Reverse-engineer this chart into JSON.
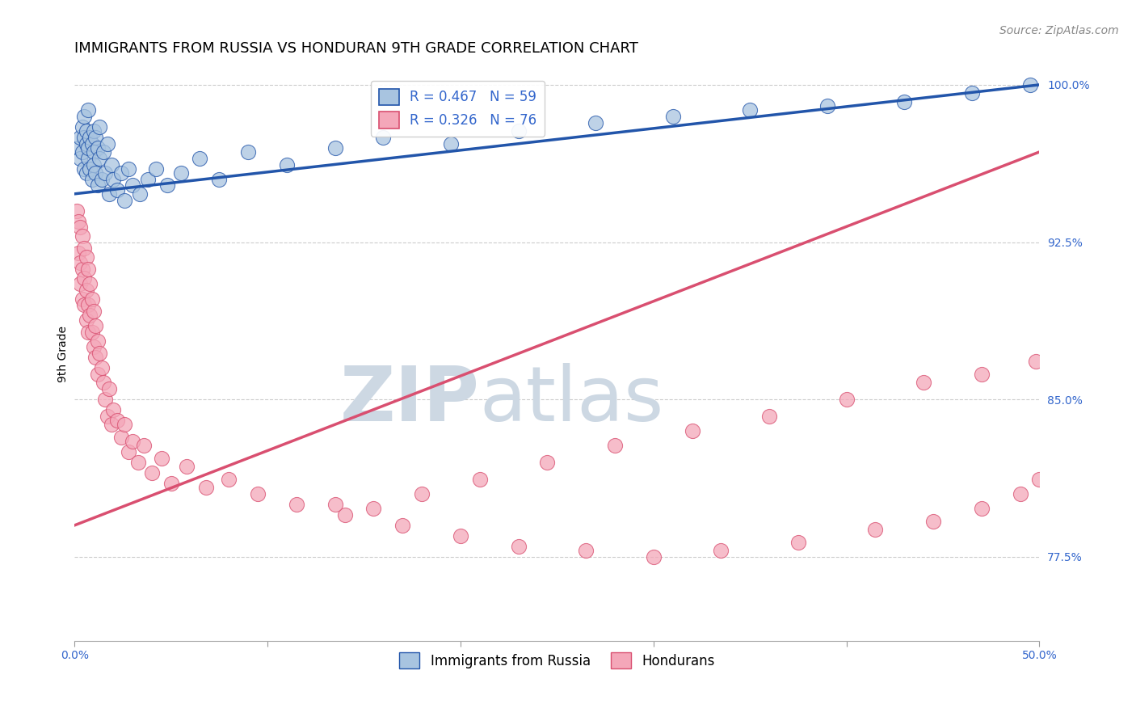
{
  "title": "IMMIGRANTS FROM RUSSIA VS HONDURAN 9TH GRADE CORRELATION CHART",
  "source_text": "Source: ZipAtlas.com",
  "ylabel": "9th Grade",
  "legend_label_blue": "Immigrants from Russia",
  "legend_label_pink": "Hondurans",
  "R_blue": 0.467,
  "N_blue": 59,
  "R_pink": 0.326,
  "N_pink": 76,
  "xlim": [
    0.0,
    0.5
  ],
  "ylim": [
    0.735,
    1.008
  ],
  "xticks": [
    0.0,
    0.1,
    0.2,
    0.3,
    0.4,
    0.5
  ],
  "xticklabels": [
    "0.0%",
    "",
    "",
    "",
    "",
    "50.0%"
  ],
  "yticks": [
    0.775,
    0.85,
    0.925,
    1.0
  ],
  "yticklabels": [
    "77.5%",
    "85.0%",
    "92.5%",
    "100.0%"
  ],
  "color_blue": "#a8c4e0",
  "color_pink": "#f4a7b9",
  "line_color_blue": "#2255aa",
  "line_color_pink": "#d94f70",
  "blue_line_x0": 0.0,
  "blue_line_y0": 0.948,
  "blue_line_x1": 0.5,
  "blue_line_y1": 1.0,
  "pink_line_x0": 0.0,
  "pink_line_y0": 0.79,
  "pink_line_x1": 0.5,
  "pink_line_y1": 0.968,
  "blue_scatter_x": [
    0.002,
    0.003,
    0.003,
    0.004,
    0.004,
    0.005,
    0.005,
    0.005,
    0.006,
    0.006,
    0.006,
    0.007,
    0.007,
    0.007,
    0.008,
    0.008,
    0.009,
    0.009,
    0.01,
    0.01,
    0.01,
    0.011,
    0.011,
    0.012,
    0.012,
    0.013,
    0.013,
    0.014,
    0.015,
    0.016,
    0.017,
    0.018,
    0.019,
    0.02,
    0.022,
    0.024,
    0.026,
    0.028,
    0.03,
    0.034,
    0.038,
    0.042,
    0.048,
    0.055,
    0.065,
    0.075,
    0.09,
    0.11,
    0.135,
    0.16,
    0.195,
    0.23,
    0.27,
    0.31,
    0.35,
    0.39,
    0.43,
    0.465,
    0.495
  ],
  "blue_scatter_y": [
    0.97,
    0.975,
    0.965,
    0.968,
    0.98,
    0.975,
    0.96,
    0.985,
    0.972,
    0.958,
    0.978,
    0.965,
    0.97,
    0.988,
    0.975,
    0.96,
    0.972,
    0.955,
    0.968,
    0.962,
    0.978,
    0.958,
    0.975,
    0.97,
    0.952,
    0.965,
    0.98,
    0.955,
    0.968,
    0.958,
    0.972,
    0.948,
    0.962,
    0.955,
    0.95,
    0.958,
    0.945,
    0.96,
    0.952,
    0.948,
    0.955,
    0.96,
    0.952,
    0.958,
    0.965,
    0.955,
    0.968,
    0.962,
    0.97,
    0.975,
    0.972,
    0.978,
    0.982,
    0.985,
    0.988,
    0.99,
    0.992,
    0.996,
    1.0
  ],
  "pink_scatter_x": [
    0.001,
    0.002,
    0.002,
    0.003,
    0.003,
    0.003,
    0.004,
    0.004,
    0.004,
    0.005,
    0.005,
    0.005,
    0.006,
    0.006,
    0.006,
    0.007,
    0.007,
    0.007,
    0.008,
    0.008,
    0.009,
    0.009,
    0.01,
    0.01,
    0.011,
    0.011,
    0.012,
    0.012,
    0.013,
    0.014,
    0.015,
    0.016,
    0.017,
    0.018,
    0.019,
    0.02,
    0.022,
    0.024,
    0.026,
    0.028,
    0.03,
    0.033,
    0.036,
    0.04,
    0.045,
    0.05,
    0.058,
    0.068,
    0.08,
    0.095,
    0.115,
    0.14,
    0.17,
    0.2,
    0.23,
    0.265,
    0.3,
    0.335,
    0.375,
    0.415,
    0.445,
    0.47,
    0.49,
    0.5,
    0.135,
    0.155,
    0.18,
    0.21,
    0.245,
    0.28,
    0.32,
    0.36,
    0.4,
    0.44,
    0.47,
    0.498
  ],
  "pink_scatter_y": [
    0.94,
    0.935,
    0.92,
    0.932,
    0.915,
    0.905,
    0.928,
    0.912,
    0.898,
    0.922,
    0.908,
    0.895,
    0.918,
    0.902,
    0.888,
    0.912,
    0.895,
    0.882,
    0.905,
    0.89,
    0.898,
    0.882,
    0.892,
    0.875,
    0.885,
    0.87,
    0.878,
    0.862,
    0.872,
    0.865,
    0.858,
    0.85,
    0.842,
    0.855,
    0.838,
    0.845,
    0.84,
    0.832,
    0.838,
    0.825,
    0.83,
    0.82,
    0.828,
    0.815,
    0.822,
    0.81,
    0.818,
    0.808,
    0.812,
    0.805,
    0.8,
    0.795,
    0.79,
    0.785,
    0.78,
    0.778,
    0.775,
    0.778,
    0.782,
    0.788,
    0.792,
    0.798,
    0.805,
    0.812,
    0.8,
    0.798,
    0.805,
    0.812,
    0.82,
    0.828,
    0.835,
    0.842,
    0.85,
    0.858,
    0.862,
    0.868
  ],
  "background_color": "#ffffff",
  "grid_color": "#cccccc",
  "watermark_color": "#cdd8e3",
  "title_fontsize": 13,
  "axis_label_fontsize": 10,
  "tick_fontsize": 10,
  "legend_fontsize": 12,
  "source_fontsize": 10
}
